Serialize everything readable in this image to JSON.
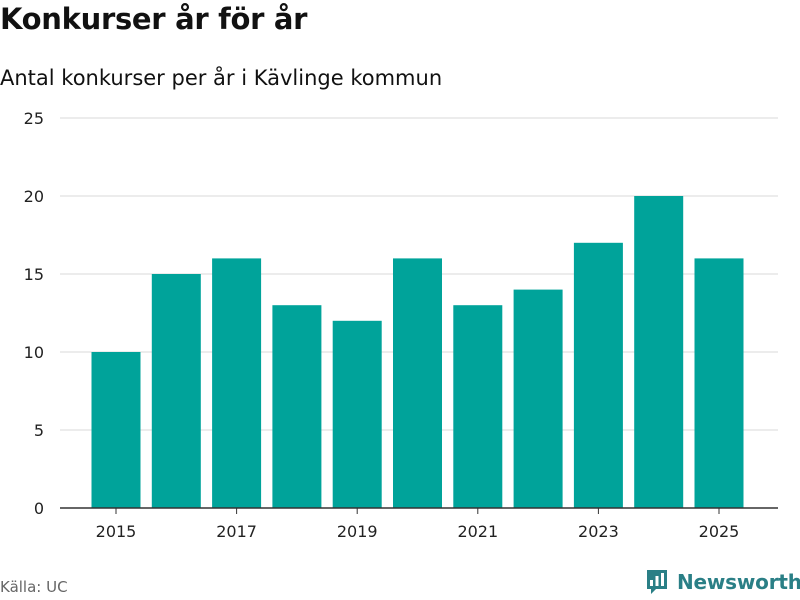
{
  "header": {
    "title": "Konkurser år för år",
    "subtitle": "Antal konkurser per år i Kävlinge kommun"
  },
  "footer": {
    "source": "Källa: UC",
    "brand": "Newsworthy",
    "brand_icon": "newsworthy-logo-icon"
  },
  "colors": {
    "bar": "#00a39a",
    "brand": "#2a7f86",
    "grid": "#d9d9d9",
    "axis": "#333333"
  },
  "chart_data": {
    "type": "bar",
    "title": "Konkurser år för år",
    "subtitle": "Antal konkurser per år i Kävlinge kommun",
    "categories": [
      "2015",
      "2016",
      "2017",
      "2018",
      "2019",
      "2020",
      "2021",
      "2022",
      "2023",
      "2024",
      "2025"
    ],
    "values": [
      10,
      15,
      16,
      13,
      12,
      16,
      13,
      14,
      17,
      20,
      16
    ],
    "x_tick_labels": [
      "2015",
      "2017",
      "2019",
      "2021",
      "2023",
      "2025"
    ],
    "y_ticks": [
      0,
      5,
      10,
      15,
      20,
      25
    ],
    "ylim": [
      0,
      25
    ],
    "xlabel": "",
    "ylabel": "",
    "grid": true,
    "legend": "none"
  }
}
